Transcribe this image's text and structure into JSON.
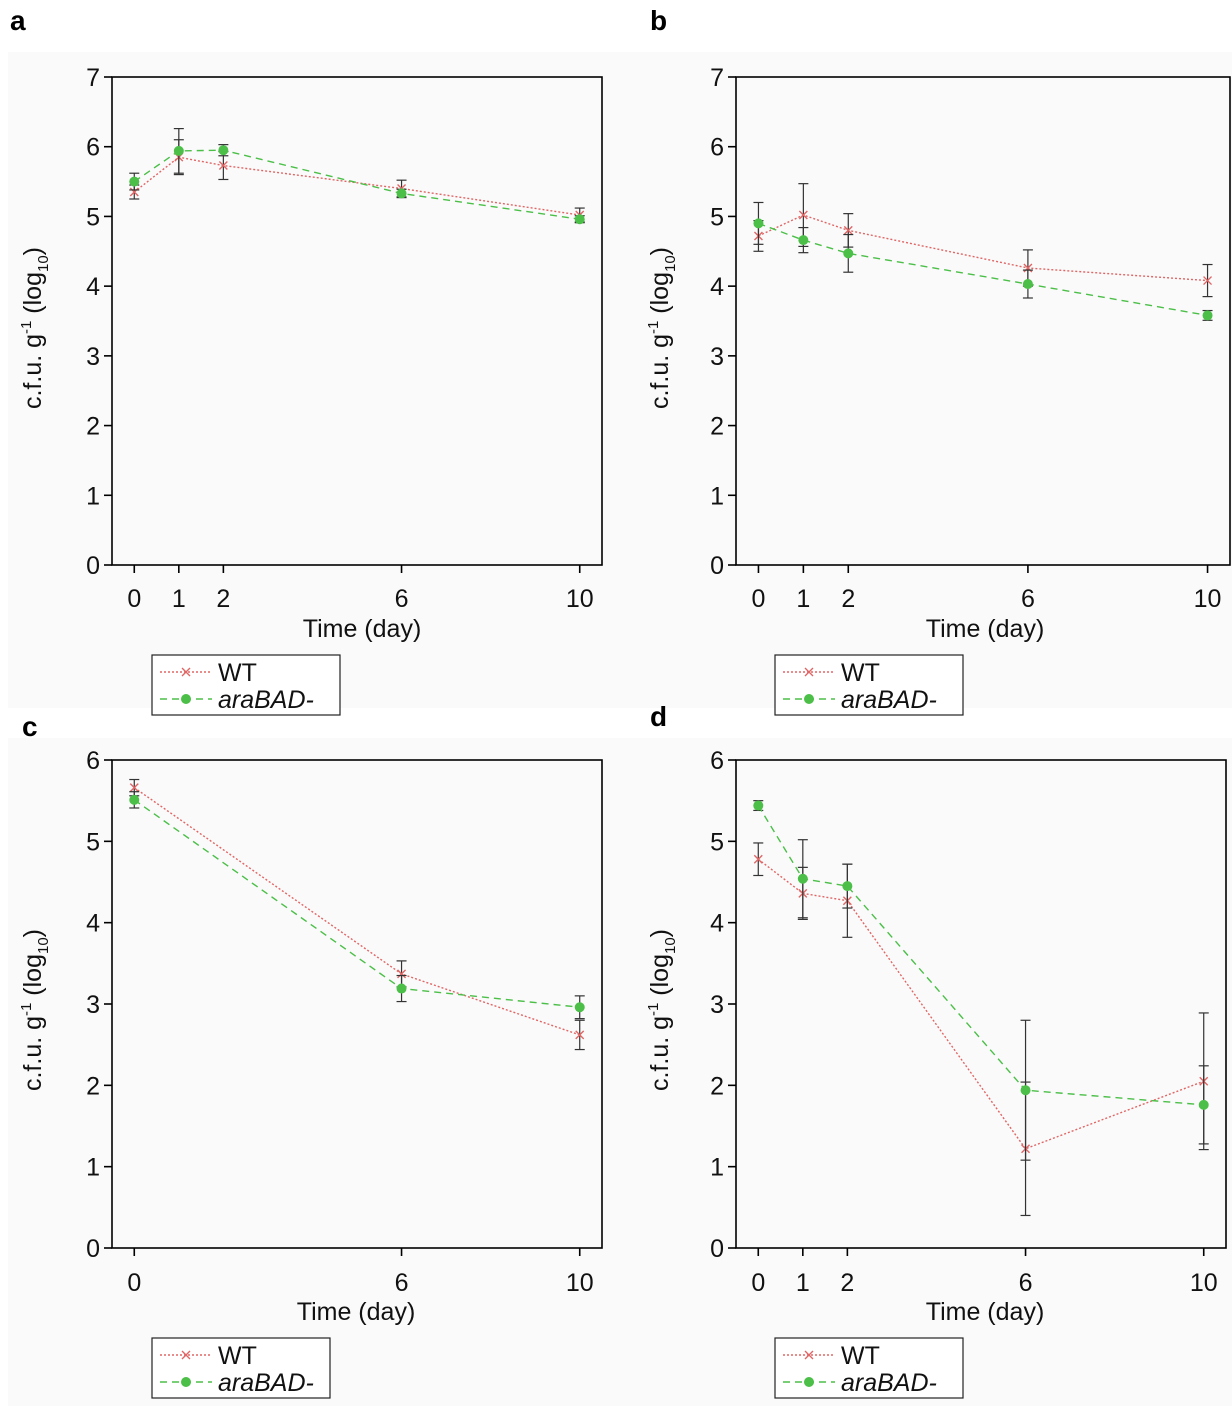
{
  "legend": {
    "wt": "WT",
    "mutant": "araBAD-"
  },
  "colors": {
    "wt": "#e06666",
    "mutant": "#4bbf48",
    "error": "#333333"
  },
  "chart_data": [
    {
      "panel": "a",
      "type": "line",
      "xlabel": "Time (day)",
      "ylabel_main": "c.f.u. g",
      "ylabel_sup": "-1",
      "ylabel_log": "(log",
      "ylabel_sub": "10",
      "ylabel_close": ")",
      "xticks": [
        0,
        1,
        2,
        6,
        10
      ],
      "yticks": [
        0,
        1,
        2,
        3,
        4,
        5,
        6,
        7
      ],
      "ylim": [
        0,
        7
      ],
      "series": [
        {
          "name": "WT",
          "x": [
            0,
            1,
            2,
            6,
            10
          ],
          "y": [
            5.35,
            5.85,
            5.73,
            5.4,
            5.02
          ],
          "err": [
            0.1,
            0.25,
            0.2,
            0.12,
            0.1
          ]
        },
        {
          "name": "araBAD-",
          "x": [
            0,
            1,
            2,
            6,
            10
          ],
          "y": [
            5.5,
            5.94,
            5.95,
            5.33,
            4.96
          ],
          "err": [
            0.12,
            0.32,
            0.08,
            0.06,
            0.05
          ]
        }
      ]
    },
    {
      "panel": "b",
      "type": "line",
      "xlabel": "Time (day)",
      "ylabel_main": "c.f.u. g",
      "ylabel_sup": "-1",
      "ylabel_log": "(log",
      "ylabel_sub": "10",
      "ylabel_close": ")",
      "xticks": [
        0,
        1,
        2,
        6,
        10
      ],
      "yticks": [
        0,
        1,
        2,
        3,
        4,
        5,
        6,
        7
      ],
      "ylim": [
        0,
        7
      ],
      "series": [
        {
          "name": "WT",
          "x": [
            0,
            1,
            2,
            6,
            10
          ],
          "y": [
            4.72,
            5.02,
            4.8,
            4.26,
            4.08
          ],
          "err": [
            0.22,
            0.45,
            0.24,
            0.26,
            0.23
          ]
        },
        {
          "name": "araBAD-",
          "x": [
            0,
            1,
            2,
            6,
            10
          ],
          "y": [
            4.9,
            4.66,
            4.47,
            4.03,
            3.58
          ],
          "err": [
            0.3,
            0.18,
            0.27,
            0.2,
            0.07
          ]
        }
      ]
    },
    {
      "panel": "c",
      "type": "line",
      "xlabel": "Time (day)",
      "ylabel_main": "c.f.u. g",
      "ylabel_sup": "-1",
      "ylabel_log": "(log",
      "ylabel_sub": "10",
      "ylabel_close": ")",
      "xticks": [
        0,
        6,
        10
      ],
      "yticks": [
        0,
        1,
        2,
        3,
        4,
        5,
        6
      ],
      "ylim": [
        0,
        6
      ],
      "series": [
        {
          "name": "WT",
          "x": [
            0,
            6,
            10
          ],
          "y": [
            5.66,
            3.37,
            2.62
          ],
          "err": [
            0.1,
            0.16,
            0.18
          ]
        },
        {
          "name": "araBAD-",
          "x": [
            0,
            6,
            10
          ],
          "y": [
            5.51,
            3.19,
            2.96
          ],
          "err": [
            0.1,
            0.16,
            0.14
          ]
        }
      ]
    },
    {
      "panel": "d",
      "type": "line",
      "xlabel": "Time (day)",
      "ylabel_main": "c.f.u. g",
      "ylabel_sup": "-1",
      "ylabel_log": "(log",
      "ylabel_sub": "10",
      "ylabel_close": ")",
      "xticks": [
        0,
        1,
        2,
        6,
        10
      ],
      "yticks": [
        0,
        1,
        2,
        3,
        4,
        5,
        6
      ],
      "ylim": [
        0,
        6
      ],
      "series": [
        {
          "name": "WT",
          "x": [
            0,
            1,
            2,
            6,
            10
          ],
          "y": [
            4.78,
            4.36,
            4.27,
            1.22,
            2.05
          ],
          "err": [
            0.2,
            0.32,
            0.45,
            0.82,
            0.84
          ]
        },
        {
          "name": "araBAD-",
          "x": [
            0,
            1,
            2,
            6,
            10
          ],
          "y": [
            5.44,
            4.54,
            4.45,
            1.94,
            1.76
          ],
          "err": [
            0.06,
            0.48,
            0.27,
            0.86,
            0.48
          ]
        }
      ]
    }
  ]
}
